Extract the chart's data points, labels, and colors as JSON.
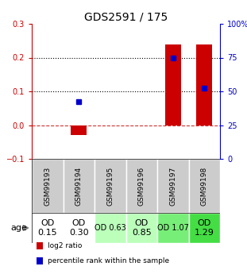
{
  "title": "GDS2591 / 175",
  "samples": [
    "GSM99193",
    "GSM99194",
    "GSM99195",
    "GSM99196",
    "GSM99197",
    "GSM99198"
  ],
  "log2_ratio": [
    0.0,
    -0.03,
    0.0,
    0.0,
    0.24,
    0.24
  ],
  "percentile_rank_pct": [
    null,
    42.5,
    null,
    null,
    75.0,
    52.5
  ],
  "ylim_left": [
    -0.1,
    0.3
  ],
  "ylim_right": [
    0,
    100
  ],
  "left_yticks": [
    -0.1,
    0.0,
    0.1,
    0.2,
    0.3
  ],
  "right_yticks": [
    0,
    25,
    50,
    75,
    100
  ],
  "right_yticklabels": [
    "0",
    "25",
    "50",
    "75",
    "100%"
  ],
  "dotted_lines": [
    0.1,
    0.2
  ],
  "dashed_line": 0.0,
  "bar_color": "#cc0000",
  "dot_color": "#0000cc",
  "bar_width": 0.5,
  "age_labels": [
    "OD\n0.15",
    "OD\n0.30",
    "OD 0.63",
    "OD\n0.85",
    "OD 1.07",
    "OD\n1.29"
  ],
  "age_bg_colors": [
    "#ffffff",
    "#ffffff",
    "#bbffbb",
    "#bbffbb",
    "#77ee77",
    "#44dd44"
  ],
  "age_font_sizes": [
    8,
    8,
    7,
    8,
    7,
    8
  ],
  "sample_bg_color": "#cccccc",
  "sample_text_color": "#000000",
  "left_tick_color": "#cc0000",
  "right_tick_color": "#0000cc",
  "legend_labels": [
    "log2 ratio",
    "percentile rank within the sample"
  ],
  "legend_colors": [
    "#cc0000",
    "#0000cc"
  ],
  "bg_color": "#ffffff",
  "spine_color": "#000000"
}
